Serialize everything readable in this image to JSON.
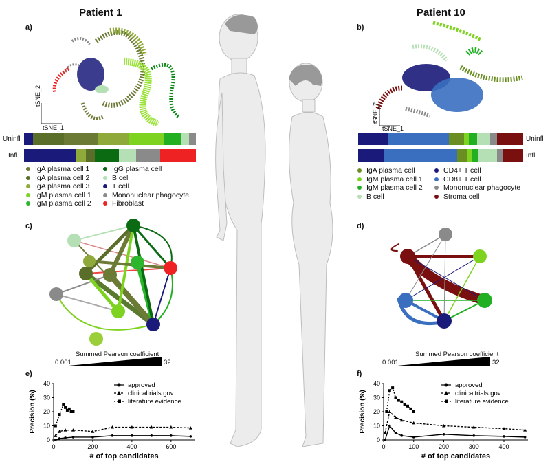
{
  "left": {
    "title": "Patient 1",
    "panel_a": "a)",
    "panel_c": "c)",
    "panel_e": "e)",
    "tsne_x": "tSNE_1",
    "tsne_y": "tSNE_2",
    "row_uninfl": "Uninfl",
    "row_infl": "Infl",
    "legend": [
      {
        "label": "IgA plasma cell 1",
        "color": "#6b7a35"
      },
      {
        "label": "IgA plasma cell 2",
        "color": "#5a6e2a"
      },
      {
        "label": "IgA plasma cell 3",
        "color": "#8faa3a"
      },
      {
        "label": "IgM plasma cell 1",
        "color": "#7ed321"
      },
      {
        "label": "IgM plasma cell 2",
        "color": "#2db52d"
      },
      {
        "label": "IgG plasma cell",
        "color": "#0b6b12"
      },
      {
        "label": "B cell",
        "color": "#b5e0b5"
      },
      {
        "label": "T cell",
        "color": "#1a1a7a"
      },
      {
        "label": "Mononuclear phagocyte",
        "color": "#8a8a8a"
      },
      {
        "label": "Fibroblast",
        "color": "#ee2222"
      }
    ],
    "pearson_label": "Summed Pearson coefficient",
    "pearson_min": "0.001",
    "pearson_max": "32"
  },
  "right": {
    "title": "Patient 10",
    "panel_b": "b)",
    "panel_d": "d)",
    "panel_f": "f)",
    "tsne_x": "tSNE_1",
    "tsne_y": "tSNE_2",
    "row_uninfl": "Uninfl",
    "row_infl": "Infl",
    "legend": [
      {
        "label": "IgA plasma cell",
        "color": "#6b8e23"
      },
      {
        "label": "IgM plasma cell 1",
        "color": "#7ed321"
      },
      {
        "label": "IgM plasma cell 2",
        "color": "#22b022"
      },
      {
        "label": "B cell",
        "color": "#b5e0b5"
      },
      {
        "label": "CD4+ T cell",
        "color": "#1a1a7a"
      },
      {
        "label": "CD8+ T cell",
        "color": "#3a6fc0"
      },
      {
        "label": "Mononuclear phagocyte",
        "color": "#8a8a8a"
      },
      {
        "label": "Stroma cell",
        "color": "#7a0f0f"
      }
    ],
    "pearson_label": "Summed Pearson coefficient",
    "pearson_min": "0.001",
    "pearson_max": "32"
  },
  "chart_data": [
    {
      "type": "line",
      "panel": "e)",
      "xlabel": "# of top candidates",
      "ylabel": "Precision (%)",
      "xlim": [
        0,
        720
      ],
      "ylim": [
        0,
        40
      ],
      "xticks": [
        "0",
        "200",
        "400",
        "600"
      ],
      "yticks": [
        "0",
        "10",
        "20",
        "30",
        "40"
      ],
      "legend": [
        "approved",
        "clinicaltrials.gov",
        "literature evidence"
      ],
      "series": [
        {
          "name": "approved",
          "x": [
            10,
            30,
            60,
            100,
            200,
            300,
            400,
            500,
            600,
            700
          ],
          "y": [
            0,
            1,
            1.5,
            2,
            2,
            3,
            3,
            3,
            3,
            2.5
          ]
        },
        {
          "name": "clinicaltrials.gov",
          "x": [
            10,
            30,
            60,
            100,
            200,
            300,
            400,
            500,
            600,
            700
          ],
          "y": [
            3,
            6,
            7,
            7,
            6,
            9,
            9,
            9,
            9,
            8.5
          ]
        },
        {
          "name": "literature evidence",
          "x": [
            10,
            30,
            50,
            60,
            70,
            80,
            90,
            100
          ],
          "y": [
            10,
            18,
            25,
            23,
            21,
            22,
            20,
            20
          ]
        }
      ]
    },
    {
      "type": "line",
      "panel": "f)",
      "xlabel": "# of top candidates",
      "ylabel": "Precision (%)",
      "xlim": [
        0,
        480
      ],
      "ylim": [
        0,
        40
      ],
      "xticks": [
        "0",
        "100",
        "200",
        "300",
        "400"
      ],
      "yticks": [
        "0",
        "10",
        "20",
        "30",
        "40"
      ],
      "legend": [
        "approved",
        "clinicaltrials.gov",
        "literature evidence"
      ],
      "series": [
        {
          "name": "approved",
          "x": [
            5,
            20,
            40,
            60,
            100,
            200,
            300,
            400,
            470
          ],
          "y": [
            0,
            10,
            5,
            3,
            2,
            4,
            3,
            2.5,
            2
          ]
        },
        {
          "name": "clinicaltrials.gov",
          "x": [
            5,
            20,
            40,
            60,
            100,
            200,
            300,
            400,
            470
          ],
          "y": [
            5,
            20,
            16,
            14,
            12,
            10,
            9,
            8,
            7
          ]
        },
        {
          "name": "literature evidence",
          "x": [
            10,
            20,
            30,
            40,
            50,
            60,
            70,
            80,
            90,
            100
          ],
          "y": [
            20,
            35,
            37,
            30,
            28,
            27,
            25,
            24,
            22,
            20
          ]
        }
      ]
    }
  ]
}
